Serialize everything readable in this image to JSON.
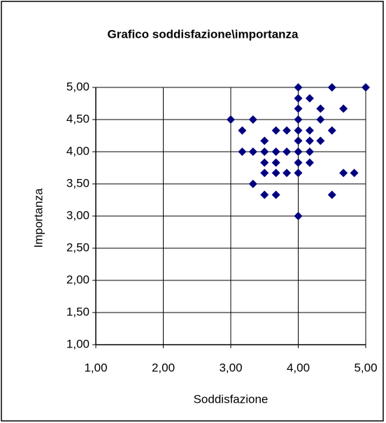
{
  "chart_data": {
    "type": "scatter",
    "title": "Grafico soddisfazione\\importanza",
    "x_label": "Soddisfazione",
    "y_label": "Importanza",
    "color": "#000080",
    "grid": true,
    "xlim": [
      1,
      5
    ],
    "ylim": [
      1,
      5
    ],
    "xticks": [
      {
        "value": 1,
        "label": "1,00"
      },
      {
        "value": 2,
        "label": "2,00"
      },
      {
        "value": 3,
        "label": "3,00"
      },
      {
        "value": 4,
        "label": "4,00"
      },
      {
        "value": 5,
        "label": "5,00"
      }
    ],
    "yticks": [
      {
        "value": 1,
        "label": "1,00"
      },
      {
        "value": 1.5,
        "label": "1,50"
      },
      {
        "value": 2,
        "label": "2,00"
      },
      {
        "value": 2.5,
        "label": "2,50"
      },
      {
        "value": 3,
        "label": "3,00"
      },
      {
        "value": 3.5,
        "label": "3,50"
      },
      {
        "value": 4,
        "label": "4,00"
      },
      {
        "value": 4.5,
        "label": "4,50"
      },
      {
        "value": 5,
        "label": "5,00"
      }
    ],
    "x": [
      5,
      4,
      4.5,
      3,
      3.33,
      3.17,
      4,
      4.17,
      4,
      4.33,
      4.67,
      4.33,
      4,
      3.67,
      3.83,
      4,
      4.17,
      4.5,
      3.5,
      4,
      4.17,
      4.33,
      3.17,
      3.33,
      3.5,
      3.67,
      3.83,
      4,
      4.17,
      3.5,
      3.67,
      4,
      4.17,
      3.5,
      3.67,
      3.83,
      4,
      4.67,
      4.83,
      3.33,
      3.5,
      3.67,
      4.5,
      4
    ],
    "values": [
      5,
      5,
      5,
      4.5,
      4.5,
      4.33,
      4.83,
      4.83,
      4.67,
      4.67,
      4.67,
      4.5,
      4.5,
      4.33,
      4.33,
      4.33,
      4.33,
      4.33,
      4.17,
      4.17,
      4.17,
      4.17,
      4,
      4,
      4,
      4,
      4,
      4,
      4,
      3.83,
      3.83,
      3.83,
      3.83,
      3.67,
      3.67,
      3.67,
      3.67,
      3.67,
      3.67,
      3.5,
      3.33,
      3.33,
      3.33,
      3
    ]
  }
}
